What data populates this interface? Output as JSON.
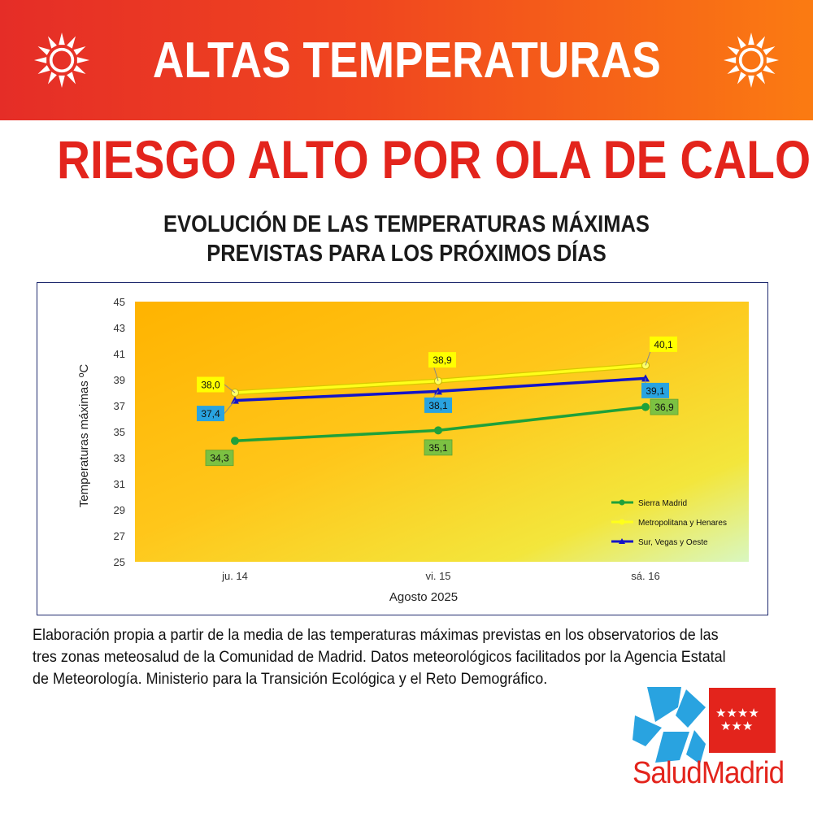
{
  "banner": {
    "title": "ALTAS TEMPERATURAS"
  },
  "alert": {
    "title": "RIESGO ALTO POR OLA DE CALOR"
  },
  "subtitle": {
    "line1": "EVOLUCIÓN DE LAS TEMPERATURAS MÁXIMAS",
    "line2": "PREVISTAS PARA LOS PRÓXIMOS DÍAS"
  },
  "chart_data": {
    "type": "line",
    "categories": [
      "ju. 14",
      "vi. 15",
      "sá. 16"
    ],
    "xlabel": "Agosto 2025",
    "ylabel": "Temperaturas máximas ºC",
    "ylim": [
      25,
      45
    ],
    "yticks": [
      25,
      27,
      29,
      31,
      33,
      35,
      37,
      39,
      41,
      43,
      45
    ],
    "grid": false,
    "legend_position": "bottom-right",
    "series": [
      {
        "name": "Sierra Madrid",
        "values": [
          34.3,
          35.1,
          36.9
        ],
        "labels": [
          "34,3",
          "35,1",
          "36,9"
        ],
        "color": "#1fa13a",
        "label_bg": "#7cc142",
        "marker": "circle"
      },
      {
        "name": "Metropolitana y Henares",
        "values": [
          38.0,
          38.9,
          40.1
        ],
        "labels": [
          "38,0",
          "38,9",
          "40,1"
        ],
        "color": "#ffff1a",
        "label_bg": "#ffff00",
        "marker": "circle"
      },
      {
        "name": "Sur, Vegas y Oeste",
        "values": [
          37.4,
          38.1,
          39.1
        ],
        "labels": [
          "37,4",
          "38,1",
          "39,1"
        ],
        "color": "#1414c8",
        "label_bg": "#29a3e0",
        "marker": "triangle"
      }
    ]
  },
  "caption": "Elaboración propia a partir de la media de las temperaturas máximas previstas en los observatorios de las tres zonas meteosalud de la Comunidad de Madrid. Datos meteorológicos facilitados por la Agencia Estatal de Meteorología. Ministerio para la Transición Ecológica y el Reto Demográfico.",
  "logo": {
    "text": "SaludMadrid",
    "brand_color": "#e3241c",
    "cross_color": "#29a3e0"
  },
  "colors": {
    "banner_left": "#e52d27",
    "banner_right": "#fb7b12",
    "alert_red": "#e3241c"
  }
}
